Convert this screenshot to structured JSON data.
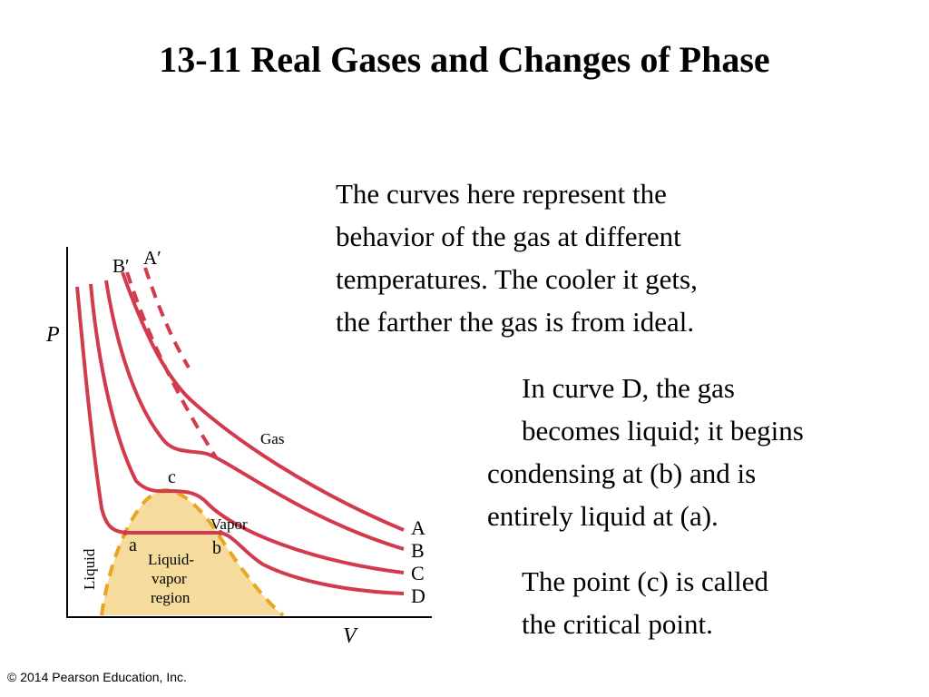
{
  "title": "13-11 Real Gases and Changes of Phase",
  "paragraph1": {
    "lines": [
      "The curves here represent the",
      "behavior of the gas at different",
      "temperatures. The cooler it gets,",
      "the farther the gas is from ideal."
    ]
  },
  "paragraph2": {
    "lines": [
      "In curve D, the gas",
      "becomes liquid; it begins",
      "condensing at (b) and is",
      "entirely liquid at (a)."
    ]
  },
  "paragraph3": {
    "lines": [
      "The point (c) is called",
      "the critical point."
    ]
  },
  "diagram": {
    "axis_p": "P",
    "axis_v": "V",
    "label_b_prime": "B′",
    "label_a_prime": "A′",
    "label_gas": "Gas",
    "label_c": "c",
    "label_vapor": "Vapor",
    "label_a": "a",
    "label_b": "b",
    "label_liquid": "Liquid",
    "region_line1": "Liquid-",
    "region_line2": "vapor",
    "region_line3": "region",
    "curve_a": "A",
    "curve_b": "B",
    "curve_c": "C",
    "curve_d": "D",
    "curve_color": "#d23a4e",
    "region_fill": "#f5dc9c",
    "dome_color": "#e8a623"
  },
  "footer": "© 2014 Pearson Education, Inc."
}
